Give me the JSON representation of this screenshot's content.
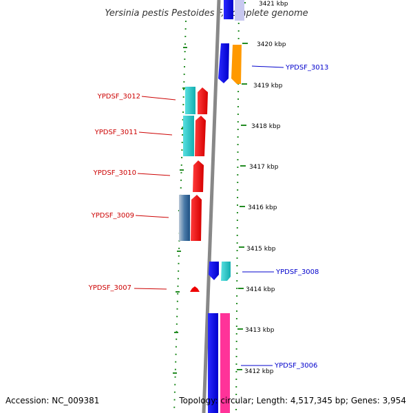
{
  "title": "Yersinia pestis Pestoides F, complete genome",
  "footer": {
    "accession": "Accession: NC_009381",
    "summary": "Topology: circular; Length: 4,517,345 bp; Genes: 3,954"
  },
  "kbp_ticks": [
    "3421 kbp",
    "3420 kbp",
    "3419 kbp",
    "3418 kbp",
    "3417 kbp",
    "3416 kbp",
    "3415 kbp",
    "3414 kbp",
    "3413 kbp",
    "3412 kbp"
  ],
  "colors": {
    "forward_strand_label": "#0000cc",
    "reverse_strand_label": "#cc0000",
    "backbone": "#888888",
    "ruler_dots": "#228b22",
    "cds_blue": "#0000ee",
    "cds_orange": "#ff9900",
    "cds_red": "#ee0000",
    "cds_cyan": "#22cccc",
    "cds_steel": "#4a7aa8",
    "cds_pink": "#ff3399"
  },
  "genes": [
    {
      "label": "YPDSF_3013",
      "strand": "forward",
      "color": "cds_orange"
    },
    {
      "label": "YPDSF_3012",
      "strand": "reverse",
      "color": "cds_red"
    },
    {
      "label": "YPDSF_3011",
      "strand": "reverse",
      "color": "cds_red"
    },
    {
      "label": "YPDSF_3010",
      "strand": "reverse",
      "color": "cds_red"
    },
    {
      "label": "YPDSF_3009",
      "strand": "reverse",
      "color": "cds_red"
    },
    {
      "label": "YPDSF_3008",
      "strand": "forward",
      "color": "cds_cyan"
    },
    {
      "label": "YPDSF_3007",
      "strand": "reverse",
      "color": "cds_red"
    },
    {
      "label": "YPDSF_3006",
      "strand": "forward",
      "color": "cds_pink"
    }
  ]
}
